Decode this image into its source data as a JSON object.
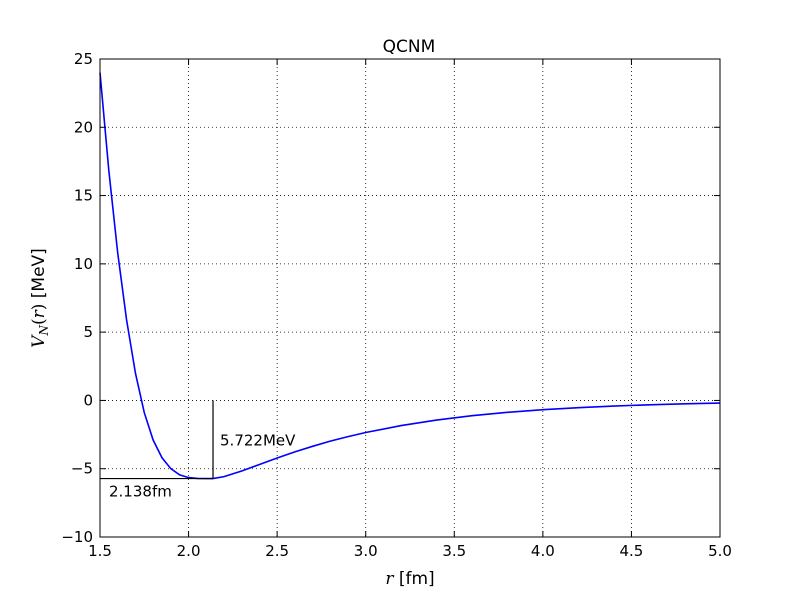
{
  "chart_data": {
    "type": "line",
    "title": "QCNM",
    "xlabel": "r [fm]",
    "ylabel": "V_N(r) [MeV]",
    "xlim": [
      1.5,
      5.0
    ],
    "ylim": [
      -10,
      25
    ],
    "grid": true,
    "x_ticks": [
      "1.5",
      "2.0",
      "2.5",
      "3.0",
      "3.5",
      "4.0",
      "4.5",
      "5.0"
    ],
    "y_ticks": [
      "25",
      "20",
      "15",
      "10",
      "5",
      "0",
      "−5",
      "−10"
    ],
    "series": [
      {
        "color": "#0000ff",
        "x": [
          1.5,
          1.55,
          1.6,
          1.65,
          1.7,
          1.75,
          1.8,
          1.85,
          1.9,
          1.95,
          2.0,
          2.05,
          2.1,
          2.138,
          2.2,
          2.3,
          2.4,
          2.5,
          2.6,
          2.7,
          2.8,
          2.9,
          3.0,
          3.2,
          3.4,
          3.6,
          3.8,
          4.0,
          4.2,
          4.4,
          4.6,
          4.8,
          5.0
        ],
        "y": [
          24.0,
          16.8,
          10.8,
          5.9,
          2.0,
          -0.9,
          -2.9,
          -4.2,
          -5.0,
          -5.45,
          -5.65,
          -5.71,
          -5.72,
          -5.722,
          -5.58,
          -5.17,
          -4.69,
          -4.22,
          -3.77,
          -3.36,
          -2.98,
          -2.65,
          -2.35,
          -1.84,
          -1.44,
          -1.12,
          -0.87,
          -0.68,
          -0.53,
          -0.41,
          -0.32,
          -0.25,
          -0.19
        ]
      }
    ],
    "annotations": {
      "min_r_label": "2.138fm",
      "min_v_label": "5.722MeV",
      "min_r": 2.138,
      "min_v": -5.722
    }
  }
}
